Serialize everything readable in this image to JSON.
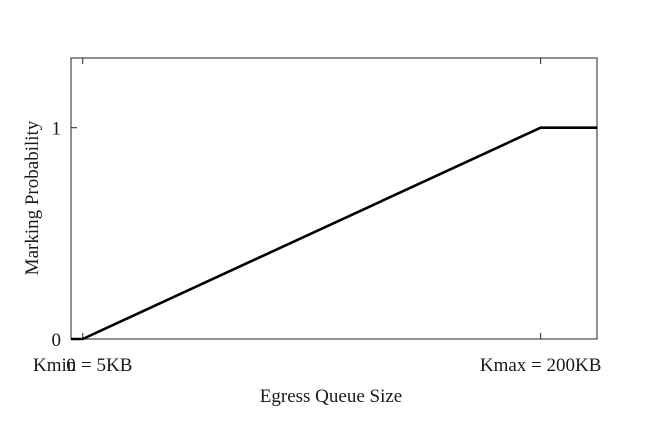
{
  "chart_data": {
    "type": "line",
    "title": "",
    "xlabel": "Egress Queue Size",
    "ylabel": "Marking Probability",
    "x_ticks": [
      {
        "value": 0,
        "label": "0"
      },
      {
        "value": 5,
        "label": "Kmin = 5KB"
      },
      {
        "value": 200,
        "label": "Kmax = 200KB"
      }
    ],
    "y_ticks": [
      {
        "value": 0,
        "label": "0"
      },
      {
        "value": 1,
        "label": "1"
      }
    ],
    "xlim": [
      0,
      224
    ],
    "ylim": [
      0,
      1.33
    ],
    "grid": false,
    "series": [
      {
        "color": "#000000",
        "points": [
          {
            "x": 0,
            "y": 0
          },
          {
            "x": 5,
            "y": 0
          },
          {
            "x": 200,
            "y": 1
          },
          {
            "x": 224,
            "y": 1
          }
        ]
      }
    ]
  }
}
